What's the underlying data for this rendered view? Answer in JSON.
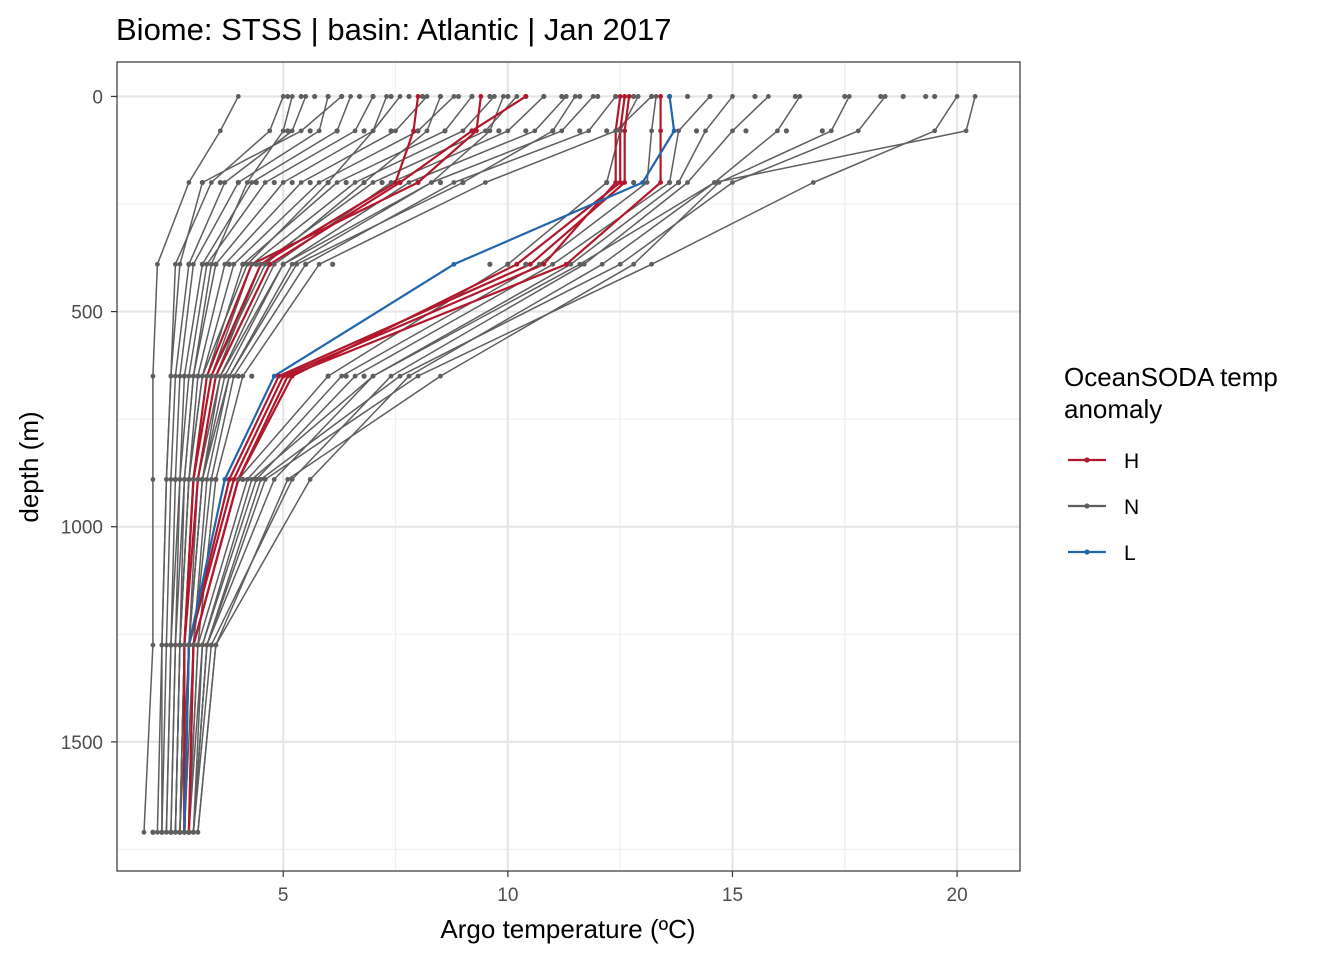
{
  "chart_data": {
    "type": "line",
    "title": "Biome: STSS | basin: Atlantic  | Jan 2017",
    "xlabel": "Argo temperature (ºC)",
    "ylabel": "depth (m)",
    "xlim": [
      1.3,
      21.4
    ],
    "ylim": [
      -80,
      1800
    ],
    "y_reversed": true,
    "x_ticks": [
      5,
      10,
      15,
      20
    ],
    "x_tick_labels": [
      "5",
      "10",
      "15",
      "20"
    ],
    "y_ticks": [
      0,
      500,
      1000,
      1500
    ],
    "y_tick_labels": [
      "0",
      "500",
      "1000",
      "1500"
    ],
    "grid": true,
    "legend": {
      "title": "OceanSODA temp\nanomaly",
      "position": "right",
      "entries": [
        {
          "label": "H",
          "color": "#B2182B"
        },
        {
          "label": "N",
          "color": "#5E5E5E"
        },
        {
          "label": "L",
          "color": "#2166AC"
        }
      ]
    },
    "depths": [
      0,
      80,
      200,
      390,
      650,
      890,
      1275,
      1710
    ],
    "series": [
      {
        "group": "H",
        "color": "#B2182B",
        "values": [
          8.0,
          7.9,
          7.5,
          4.5,
          3.4,
          3.0,
          2.8,
          2.8
        ]
      },
      {
        "group": "H",
        "color": "#B2182B",
        "values": [
          9.4,
          9.3,
          8.0,
          4.3,
          3.3,
          3.0,
          2.8,
          2.8
        ]
      },
      {
        "group": "H",
        "color": "#B2182B",
        "values": [
          10.4,
          9.2,
          7.6,
          4.7,
          3.5,
          3.1,
          2.8,
          2.8
        ]
      },
      {
        "group": "H",
        "color": "#B2182B",
        "values": [
          12.5,
          12.4,
          12.4,
          10.8,
          5.0,
          3.9,
          2.9,
          2.8
        ]
      },
      {
        "group": "H",
        "color": "#B2182B",
        "values": [
          12.6,
          12.5,
          12.5,
          10.2,
          5.2,
          4.0,
          3.0,
          2.9
        ]
      },
      {
        "group": "H",
        "color": "#B2182B",
        "values": [
          12.7,
          12.6,
          12.6,
          10.5,
          4.9,
          3.8,
          2.9,
          2.8
        ]
      },
      {
        "group": "H",
        "color": "#B2182B",
        "values": [
          13.4,
          13.4,
          13.4,
          11.3,
          5.1,
          4.0,
          3.0,
          2.9
        ]
      },
      {
        "group": "L",
        "color": "#2166AC",
        "values": [
          13.6,
          13.7,
          13.0,
          8.8,
          4.8,
          3.7,
          2.9,
          2.8
        ]
      },
      {
        "group": "N",
        "color": "#5E5E5E",
        "values": [
          4.0,
          3.6,
          2.9,
          2.2,
          2.1,
          2.1,
          2.1,
          1.9
        ]
      },
      {
        "group": "N",
        "color": "#5E5E5E",
        "values": [
          5.0,
          4.7,
          3.4,
          2.6,
          2.5,
          2.4,
          2.3,
          2.3
        ]
      },
      {
        "group": "N",
        "color": "#5E5E5E",
        "values": [
          5.5,
          5.2,
          3.7,
          2.9,
          2.6,
          2.5,
          2.4,
          2.3
        ]
      },
      {
        "group": "N",
        "color": "#5E5E5E",
        "values": [
          6.0,
          5.8,
          4.0,
          3.0,
          2.7,
          2.6,
          2.5,
          2.4
        ]
      },
      {
        "group": "N",
        "color": "#5E5E5E",
        "values": [
          6.5,
          6.2,
          4.3,
          3.2,
          2.8,
          2.7,
          2.5,
          2.4
        ]
      },
      {
        "group": "N",
        "color": "#5E5E5E",
        "values": [
          7.0,
          6.6,
          4.6,
          3.3,
          2.9,
          2.7,
          2.6,
          2.5
        ]
      },
      {
        "group": "N",
        "color": "#5E5E5E",
        "values": [
          7.6,
          7.0,
          5.0,
          3.5,
          3.0,
          2.8,
          2.6,
          2.5
        ]
      },
      {
        "group": "N",
        "color": "#5E5E5E",
        "values": [
          8.2,
          7.5,
          5.4,
          3.7,
          3.1,
          2.9,
          2.7,
          2.6
        ]
      },
      {
        "group": "N",
        "color": "#5E5E5E",
        "values": [
          8.8,
          8.0,
          5.8,
          3.9,
          3.2,
          2.9,
          2.7,
          2.6
        ]
      },
      {
        "group": "N",
        "color": "#5E5E5E",
        "values": [
          9.2,
          8.6,
          6.2,
          4.1,
          3.3,
          3.0,
          2.8,
          2.7
        ]
      },
      {
        "group": "N",
        "color": "#5E5E5E",
        "values": [
          9.7,
          9.0,
          6.6,
          4.3,
          3.4,
          3.0,
          2.8,
          2.7
        ]
      },
      {
        "group": "N",
        "color": "#5E5E5E",
        "values": [
          10.2,
          9.5,
          7.0,
          4.5,
          3.5,
          3.1,
          2.8,
          2.7
        ]
      },
      {
        "group": "N",
        "color": "#5E5E5E",
        "values": [
          10.8,
          10.0,
          7.4,
          4.8,
          3.6,
          3.2,
          2.9,
          2.8
        ]
      },
      {
        "group": "N",
        "color": "#5E5E5E",
        "values": [
          11.3,
          10.6,
          7.8,
          5.0,
          3.7,
          3.2,
          2.9,
          2.8
        ]
      },
      {
        "group": "N",
        "color": "#5E5E5E",
        "values": [
          11.9,
          11.2,
          8.3,
          5.2,
          3.8,
          3.3,
          3.0,
          2.8
        ]
      },
      {
        "group": "N",
        "color": "#5E5E5E",
        "values": [
          12.4,
          11.8,
          8.8,
          5.5,
          3.9,
          3.4,
          3.0,
          2.9
        ]
      },
      {
        "group": "N",
        "color": "#5E5E5E",
        "values": [
          13.2,
          12.4,
          9.5,
          5.8,
          4.1,
          3.5,
          3.1,
          2.9
        ]
      },
      {
        "group": "N",
        "color": "#5E5E5E",
        "values": [
          7.3,
          7.0,
          6.0,
          4.2,
          3.2,
          2.9,
          2.7,
          2.6
        ]
      },
      {
        "group": "N",
        "color": "#5E5E5E",
        "values": [
          8.5,
          8.2,
          6.8,
          4.6,
          3.4,
          3.0,
          2.8,
          2.7
        ]
      },
      {
        "group": "N",
        "color": "#5E5E5E",
        "values": [
          9.9,
          9.6,
          8.3,
          5.0,
          3.6,
          3.1,
          2.9,
          2.7
        ]
      },
      {
        "group": "N",
        "color": "#5E5E5E",
        "values": [
          11.5,
          11.0,
          9.0,
          5.3,
          3.8,
          3.2,
          2.9,
          2.8
        ]
      },
      {
        "group": "N",
        "color": "#5E5E5E",
        "values": [
          12.9,
          12.5,
          12.2,
          10.0,
          6.0,
          4.0,
          3.0,
          2.9
        ]
      },
      {
        "group": "N",
        "color": "#5E5E5E",
        "values": [
          13.3,
          13.2,
          13.1,
          10.7,
          6.3,
          4.2,
          3.1,
          2.9
        ]
      },
      {
        "group": "N",
        "color": "#5E5E5E",
        "values": [
          14.5,
          13.8,
          13.6,
          11.0,
          6.6,
          4.4,
          3.2,
          3.0
        ]
      },
      {
        "group": "N",
        "color": "#5E5E5E",
        "values": [
          15.0,
          14.4,
          13.8,
          11.4,
          7.0,
          4.8,
          3.3,
          3.0
        ]
      },
      {
        "group": "N",
        "color": "#5E5E5E",
        "values": [
          15.8,
          15.0,
          14.0,
          11.7,
          7.4,
          5.2,
          3.4,
          3.0
        ]
      },
      {
        "group": "N",
        "color": "#5E5E5E",
        "values": [
          16.5,
          16.0,
          14.6,
          12.1,
          7.8,
          5.6,
          3.5,
          3.1
        ]
      },
      {
        "group": "N",
        "color": "#5E5E5E",
        "values": [
          17.6,
          17.2,
          14.7,
          12.8,
          8.5,
          5.1,
          3.5,
          3.1
        ]
      },
      {
        "group": "N",
        "color": "#5E5E5E",
        "values": [
          18.4,
          17.8,
          15.0,
          12.5,
          7.6,
          4.5,
          3.3,
          3.0
        ]
      },
      {
        "group": "N",
        "color": "#5E5E5E",
        "values": [
          20.0,
          19.5,
          16.8,
          13.2,
          8.0,
          4.6,
          3.3,
          3.0
        ]
      },
      {
        "group": "N",
        "color": "#5E5E5E",
        "values": [
          20.4,
          20.2,
          14.6,
          11.6,
          7.0,
          4.3,
          3.2,
          2.9
        ]
      },
      {
        "group": "N",
        "color": "#5E5E5E",
        "values": [
          5.2,
          5.0,
          4.2,
          3.4,
          3.0,
          2.8,
          2.7,
          2.6
        ]
      },
      {
        "group": "N",
        "color": "#5E5E5E",
        "values": [
          6.3,
          5.4,
          3.2,
          2.7,
          2.5,
          2.4,
          2.3,
          2.2
        ]
      }
    ],
    "scatter_points": [
      {
        "x": 5.1,
        "y": 0
      },
      {
        "x": 5.4,
        "y": 0
      },
      {
        "x": 5.7,
        "y": 0
      },
      {
        "x": 6.0,
        "y": 0
      },
      {
        "x": 6.3,
        "y": 0
      },
      {
        "x": 6.7,
        "y": 0
      },
      {
        "x": 7.0,
        "y": 0
      },
      {
        "x": 7.4,
        "y": 0
      },
      {
        "x": 7.8,
        "y": 0
      },
      {
        "x": 8.1,
        "y": 0
      },
      {
        "x": 8.5,
        "y": 0
      },
      {
        "x": 8.9,
        "y": 0
      },
      {
        "x": 9.2,
        "y": 0
      },
      {
        "x": 9.6,
        "y": 0
      },
      {
        "x": 10.0,
        "y": 0
      },
      {
        "x": 10.4,
        "y": 0
      },
      {
        "x": 10.8,
        "y": 0
      },
      {
        "x": 11.2,
        "y": 0
      },
      {
        "x": 11.6,
        "y": 0
      },
      {
        "x": 12.0,
        "y": 0
      },
      {
        "x": 12.4,
        "y": 0
      },
      {
        "x": 12.8,
        "y": 0
      },
      {
        "x": 13.2,
        "y": 0
      },
      {
        "x": 13.6,
        "y": 0
      },
      {
        "x": 14.0,
        "y": 0
      },
      {
        "x": 14.5,
        "y": 0
      },
      {
        "x": 15.5,
        "y": 0
      },
      {
        "x": 16.4,
        "y": 0
      },
      {
        "x": 17.5,
        "y": 0
      },
      {
        "x": 18.3,
        "y": 0
      },
      {
        "x": 18.8,
        "y": 0
      },
      {
        "x": 19.3,
        "y": 0
      },
      {
        "x": 19.5,
        "y": 0
      },
      {
        "x": 5.1,
        "y": 80
      },
      {
        "x": 5.6,
        "y": 80
      },
      {
        "x": 6.2,
        "y": 80
      },
      {
        "x": 6.8,
        "y": 80
      },
      {
        "x": 7.4,
        "y": 80
      },
      {
        "x": 8.0,
        "y": 80
      },
      {
        "x": 8.6,
        "y": 80
      },
      {
        "x": 9.2,
        "y": 80
      },
      {
        "x": 9.8,
        "y": 80
      },
      {
        "x": 10.4,
        "y": 80
      },
      {
        "x": 11.0,
        "y": 80
      },
      {
        "x": 11.6,
        "y": 80
      },
      {
        "x": 12.2,
        "y": 80
      },
      {
        "x": 14.2,
        "y": 80
      },
      {
        "x": 15.3,
        "y": 80
      },
      {
        "x": 16.2,
        "y": 80
      },
      {
        "x": 17.0,
        "y": 80
      },
      {
        "x": 3.2,
        "y": 200
      },
      {
        "x": 3.6,
        "y": 200
      },
      {
        "x": 4.0,
        "y": 200
      },
      {
        "x": 4.4,
        "y": 200
      },
      {
        "x": 4.8,
        "y": 200
      },
      {
        "x": 5.2,
        "y": 200
      },
      {
        "x": 5.6,
        "y": 200
      },
      {
        "x": 6.0,
        "y": 200
      },
      {
        "x": 6.4,
        "y": 200
      },
      {
        "x": 6.8,
        "y": 200
      },
      {
        "x": 7.2,
        "y": 200
      },
      {
        "x": 7.6,
        "y": 200
      },
      {
        "x": 8.0,
        "y": 200
      },
      {
        "x": 8.5,
        "y": 200
      },
      {
        "x": 9.0,
        "y": 200
      },
      {
        "x": 12.2,
        "y": 200
      },
      {
        "x": 12.8,
        "y": 200
      },
      {
        "x": 13.6,
        "y": 200
      },
      {
        "x": 13.8,
        "y": 200
      },
      {
        "x": 2.9,
        "y": 390
      },
      {
        "x": 3.2,
        "y": 390
      },
      {
        "x": 3.5,
        "y": 390
      },
      {
        "x": 3.8,
        "y": 390
      },
      {
        "x": 4.1,
        "y": 390
      },
      {
        "x": 4.4,
        "y": 390
      },
      {
        "x": 4.7,
        "y": 390
      },
      {
        "x": 5.0,
        "y": 390
      },
      {
        "x": 5.5,
        "y": 390
      },
      {
        "x": 6.1,
        "y": 390
      },
      {
        "x": 9.6,
        "y": 390
      },
      {
        "x": 10.0,
        "y": 390
      },
      {
        "x": 10.4,
        "y": 390
      },
      {
        "x": 2.8,
        "y": 650
      },
      {
        "x": 3.1,
        "y": 650
      },
      {
        "x": 3.4,
        "y": 650
      },
      {
        "x": 3.7,
        "y": 650
      },
      {
        "x": 4.0,
        "y": 650
      },
      {
        "x": 4.3,
        "y": 650
      },
      {
        "x": 6.0,
        "y": 650
      },
      {
        "x": 6.4,
        "y": 650
      },
      {
        "x": 6.8,
        "y": 650
      },
      {
        "x": 2.6,
        "y": 890
      },
      {
        "x": 2.9,
        "y": 890
      },
      {
        "x": 3.2,
        "y": 890
      },
      {
        "x": 3.5,
        "y": 890
      },
      {
        "x": 3.8,
        "y": 890
      },
      {
        "x": 4.1,
        "y": 890
      },
      {
        "x": 4.4,
        "y": 890
      },
      {
        "x": 2.5,
        "y": 1275
      },
      {
        "x": 2.7,
        "y": 1275
      },
      {
        "x": 2.9,
        "y": 1275
      },
      {
        "x": 3.1,
        "y": 1275
      },
      {
        "x": 3.4,
        "y": 1275
      },
      {
        "x": 2.1,
        "y": 1710
      },
      {
        "x": 2.3,
        "y": 1710
      },
      {
        "x": 2.5,
        "y": 1710
      },
      {
        "x": 2.7,
        "y": 1710
      },
      {
        "x": 2.9,
        "y": 1710
      }
    ]
  }
}
